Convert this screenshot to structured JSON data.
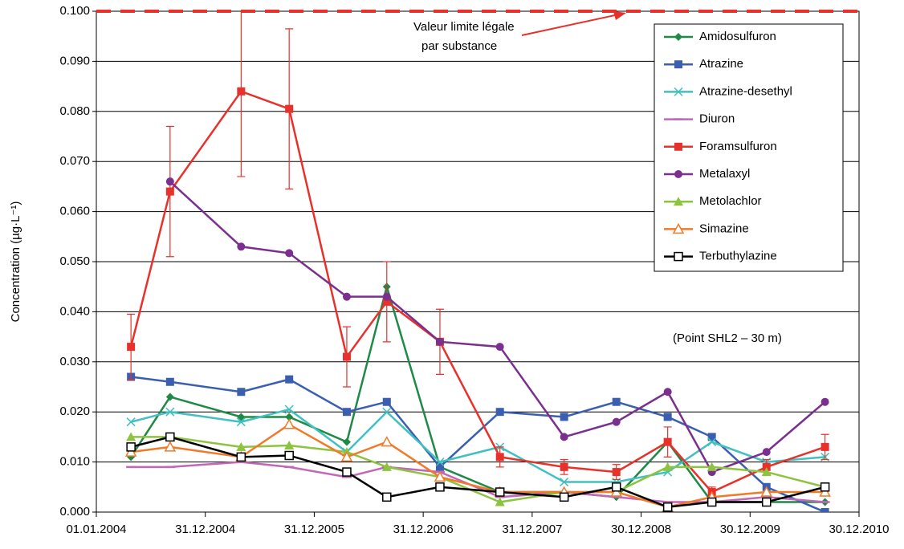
{
  "chart_data": {
    "type": "line",
    "y_label": "Concentration  (µg·L⁻¹)",
    "annotation": "(Point SHL2 – 30 m)",
    "limit": {
      "value": 0.1,
      "color": "#e8312a",
      "label": [
        "Valeur limite légale",
        "par substance"
      ]
    },
    "xlim": [
      "2004-01-01",
      "2010-12-30"
    ],
    "xticks": [
      {
        "value": "2004-01-01",
        "label": "01.01.2004"
      },
      {
        "value": "2004-12-31",
        "label": "31.12.2004"
      },
      {
        "value": "2005-12-31",
        "label": "31.12.2005"
      },
      {
        "value": "2006-12-31",
        "label": "31.12.2006"
      },
      {
        "value": "2007-12-31",
        "label": "31.12.2007"
      },
      {
        "value": "2008-12-30",
        "label": "30.12.2008"
      },
      {
        "value": "2009-12-30",
        "label": "30.12.2009"
      },
      {
        "value": "2010-12-30",
        "label": "30.12.2010"
      }
    ],
    "ylim": [
      0,
      0.1
    ],
    "yticks": [
      {
        "value": 0,
        "label": "0.000"
      },
      {
        "value": 0.01,
        "label": "0.010"
      },
      {
        "value": 0.02,
        "label": "0.020"
      },
      {
        "value": 0.03,
        "label": "0.030"
      },
      {
        "value": 0.04,
        "label": "0.040"
      },
      {
        "value": 0.05,
        "label": "0.050"
      },
      {
        "value": 0.06,
        "label": "0.060"
      },
      {
        "value": 0.07,
        "label": "0.070"
      },
      {
        "value": 0.08,
        "label": "0.080"
      },
      {
        "value": 0.09,
        "label": "0.090"
      },
      {
        "value": 0.1,
        "label": "0.100"
      }
    ],
    "grid": true,
    "legend": "top-right",
    "x": [
      "2004-04-26",
      "2004-09-04",
      "2005-04-30",
      "2005-10-08",
      "2006-04-19",
      "2006-08-31",
      "2007-02-25",
      "2007-09-14",
      "2008-04-16",
      "2008-10-08",
      "2009-03-29",
      "2009-08-24",
      "2010-02-23",
      "2010-09-07"
    ],
    "series": [
      {
        "name": "Amidosulfuron",
        "color": "#1e8a45",
        "marker": "diamond",
        "values": [
          0.011,
          0.023,
          0.019,
          0.019,
          0.014,
          0.045,
          0.009,
          0.004,
          0.004,
          0.003,
          0.014,
          0.002,
          0.002,
          0.002
        ]
      },
      {
        "name": "Atrazine",
        "color": "#3a5fb0",
        "marker": "square",
        "values": [
          0.027,
          0.026,
          0.024,
          0.0265,
          0.02,
          0.022,
          0.009,
          0.02,
          0.019,
          0.022,
          0.019,
          0.015,
          0.005,
          0
        ]
      },
      {
        "name": "Atrazine-desethyl",
        "color": "#40c0c0",
        "marker": "x",
        "values": [
          0.018,
          0.02,
          0.018,
          0.0205,
          0.012,
          0.02,
          0.01,
          0.013,
          0.006,
          0.006,
          0.008,
          0.014,
          0.01,
          0.011
        ]
      },
      {
        "name": "Diuron",
        "color": "#c266b8",
        "marker": "dash",
        "values": [
          0.009,
          0.009,
          0.01,
          0.009,
          0.007,
          0.009,
          0.008,
          0.003,
          0.004,
          0.003,
          0.002,
          0.002,
          0.003,
          0.002
        ]
      },
      {
        "name": "Foramsulfuron",
        "color": "#e8312a",
        "marker": "square",
        "values": [
          0.033,
          0.064,
          0.084,
          0.0805,
          0.031,
          0.042,
          0.034,
          0.011,
          0.009,
          0.008,
          0.014,
          0.004,
          0.009,
          0.013
        ],
        "errors": [
          0.0065,
          0.013,
          0.017,
          0.016,
          0.006,
          0.008,
          0.0065,
          0.002,
          0.0015,
          0.0015,
          0.003,
          0.001,
          0.0015,
          0.0025
        ]
      },
      {
        "name": "Metalaxyl",
        "color": "#7b2f8e",
        "marker": "circle",
        "values": [
          null,
          0.066,
          0.053,
          0.0517,
          0.043,
          0.043,
          0.034,
          0.033,
          0.015,
          0.018,
          0.024,
          0.008,
          0.012,
          0.022
        ]
      },
      {
        "name": "Metolachlor",
        "color": "#8cc43f",
        "marker": "triangle",
        "values": [
          0.015,
          0.015,
          0.013,
          0.0133,
          0.012,
          0.009,
          0.007,
          0.002,
          0.004,
          0.004,
          0.009,
          0.009,
          0.008,
          0.005
        ]
      },
      {
        "name": "Simazine",
        "color": "#f07a28",
        "marker": "open-triangle",
        "values": [
          0.012,
          0.013,
          0.011,
          0.0175,
          0.011,
          0.014,
          0.007,
          0.004,
          0.004,
          0.004,
          0.001,
          0.003,
          0.004,
          0.004
        ]
      },
      {
        "name": "Terbuthylazine",
        "color": "#000000",
        "marker": "open-square",
        "values": [
          0.013,
          0.015,
          0.011,
          0.0113,
          0.008,
          0.003,
          0.005,
          0.004,
          0.003,
          0.005,
          0.001,
          0.002,
          0.002,
          0.005
        ]
      }
    ]
  }
}
